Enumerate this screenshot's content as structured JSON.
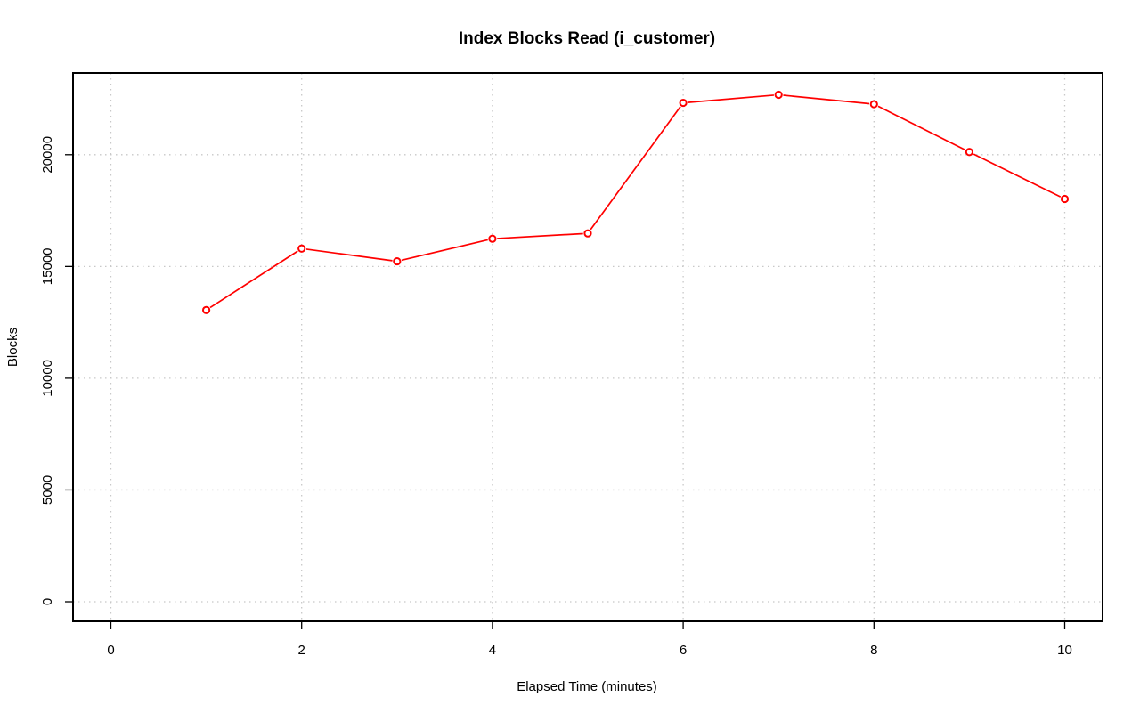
{
  "chart_data": {
    "type": "line",
    "title": "Index Blocks Read (i_customer)",
    "xlabel": "Elapsed Time (minutes)",
    "ylabel": "Blocks",
    "xlim": [
      0,
      10
    ],
    "ylim": [
      0,
      22700
    ],
    "x_ticks": [
      0,
      2,
      4,
      6,
      8,
      10
    ],
    "x_tick_labels": [
      "0",
      "2",
      "4",
      "6",
      "8",
      "10"
    ],
    "y_ticks": [
      0,
      5000,
      10000,
      15000,
      20000
    ],
    "y_tick_labels": [
      "0",
      "5000",
      "10000",
      "15000",
      "20000"
    ],
    "grid": true,
    "series": [
      {
        "color": "#ff0000",
        "marker": "open-circle",
        "x": [
          1,
          2,
          3,
          4,
          5,
          6,
          7,
          8,
          9,
          10
        ],
        "values": [
          13050,
          15800,
          15230,
          16240,
          16480,
          22320,
          22680,
          22260,
          20120,
          18020
        ]
      }
    ]
  }
}
